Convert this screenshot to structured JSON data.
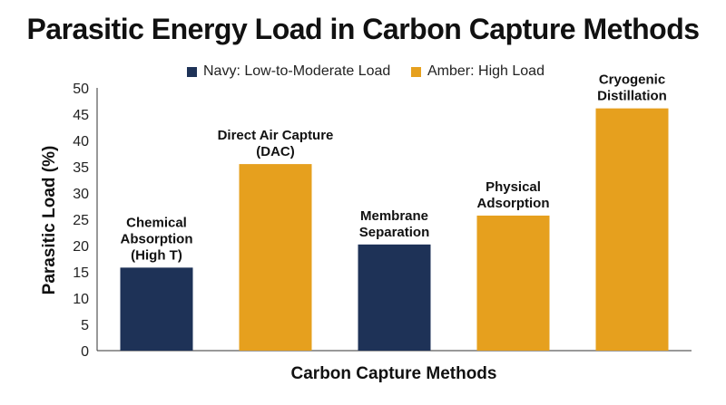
{
  "chart_data": {
    "type": "bar",
    "title": "Parasitic Energy Load in Carbon Capture Methods",
    "xlabel": "Carbon Capture Methods",
    "ylabel": "Parasitic Load (%)",
    "ylim": [
      0,
      50
    ],
    "yticks": [
      0,
      5,
      10,
      15,
      20,
      25,
      30,
      35,
      40,
      45,
      50
    ],
    "grid": false,
    "legend_position": "top",
    "legend": [
      {
        "label": "Navy: Low-to-Moderate Load",
        "color": "#1e3257"
      },
      {
        "label": "Amber: High Load",
        "color": "#e6a01e"
      }
    ],
    "categories": [
      [
        "Chemical",
        "Absorption",
        "(High T)"
      ],
      [
        "Direct Air Capture",
        "(DAC)"
      ],
      [
        "Membrane",
        "Separation"
      ],
      [
        "Physical",
        "Adsorption"
      ],
      [
        "Cryogenic",
        "Distillation"
      ]
    ],
    "values": [
      15.8,
      35.5,
      20.2,
      25.7,
      46.1
    ],
    "colors": [
      "#1e3257",
      "#e6a01e",
      "#1e3257",
      "#e6a01e",
      "#e6a01e"
    ]
  }
}
